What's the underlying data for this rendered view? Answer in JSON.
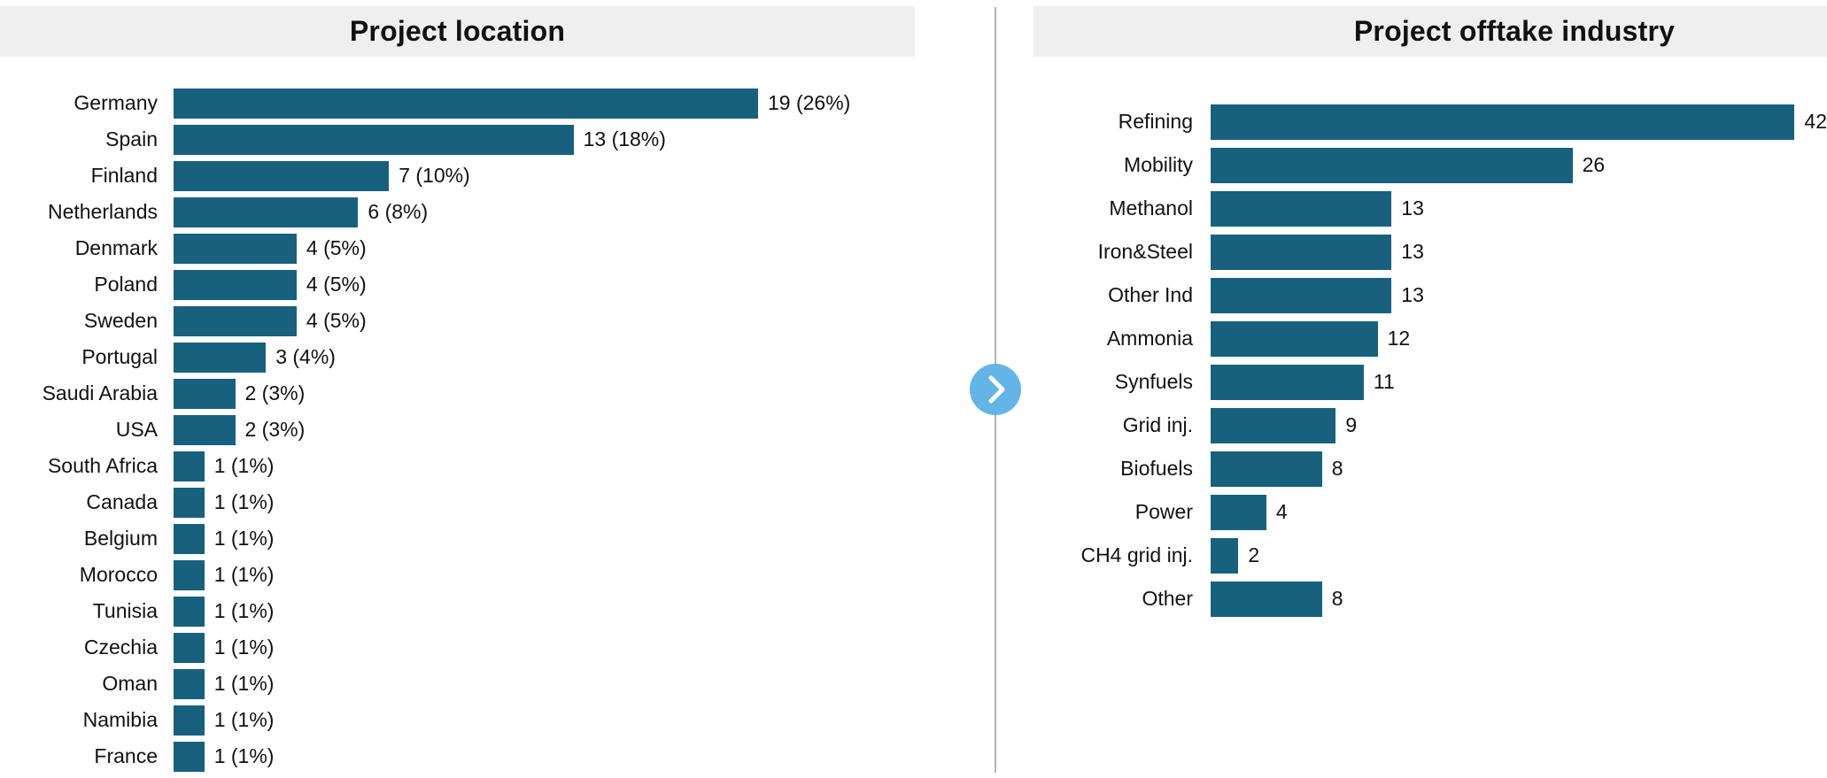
{
  "chart_data": [
    {
      "type": "bar",
      "orientation": "horizontal",
      "title": "Project location",
      "bar_color": "#17617f",
      "grid": false,
      "xlim": [
        0,
        19
      ],
      "categories": [
        "Germany",
        "Spain",
        "Finland",
        "Netherlands",
        "Denmark",
        "Poland",
        "Sweden",
        "Portugal",
        "Saudi Arabia",
        "USA",
        "South Africa",
        "Canada",
        "Belgium",
        "Morocco",
        "Tunisia",
        "Czechia",
        "Oman",
        "Namibia",
        "France"
      ],
      "values": [
        19,
        13,
        7,
        6,
        4,
        4,
        4,
        3,
        2,
        2,
        1,
        1,
        1,
        1,
        1,
        1,
        1,
        1,
        1
      ],
      "value_labels": [
        "19 (26%)",
        "13 (18%)",
        "7 (10%)",
        "6 (8%)",
        "4 (5%)",
        "4 (5%)",
        "4 (5%)",
        "3 (4%)",
        "2 (3%)",
        "2 (3%)",
        "1 (1%)",
        "1 (1%)",
        "1 (1%)",
        "1 (1%)",
        "1 (1%)",
        "1 (1%)",
        "1 (1%)",
        "1 (1%)",
        "1 (1%)"
      ]
    },
    {
      "type": "bar",
      "orientation": "horizontal",
      "title": "Project offtake industry",
      "bar_color": "#17617f",
      "grid": false,
      "xlim": [
        0,
        42
      ],
      "categories": [
        "Refining",
        "Mobility",
        "Methanol",
        "Iron&Steel",
        "Other Ind",
        "Ammonia",
        "Synfuels",
        "Grid inj.",
        "Biofuels",
        "Power",
        "CH4 grid inj.",
        "Other"
      ],
      "values": [
        42,
        26,
        13,
        13,
        13,
        12,
        11,
        9,
        8,
        4,
        2,
        8
      ],
      "value_labels": [
        "42",
        "26",
        "13",
        "13",
        "13",
        "12",
        "11",
        "9",
        "8",
        "4",
        "2",
        "8"
      ]
    }
  ],
  "divider": {
    "next_icon": "chevron-right-icon"
  },
  "colors": {
    "bar": "#17617f",
    "title_band": "#efefef",
    "divider_line": "#b3b3b3",
    "chevron_circle": "#63b5e7"
  }
}
